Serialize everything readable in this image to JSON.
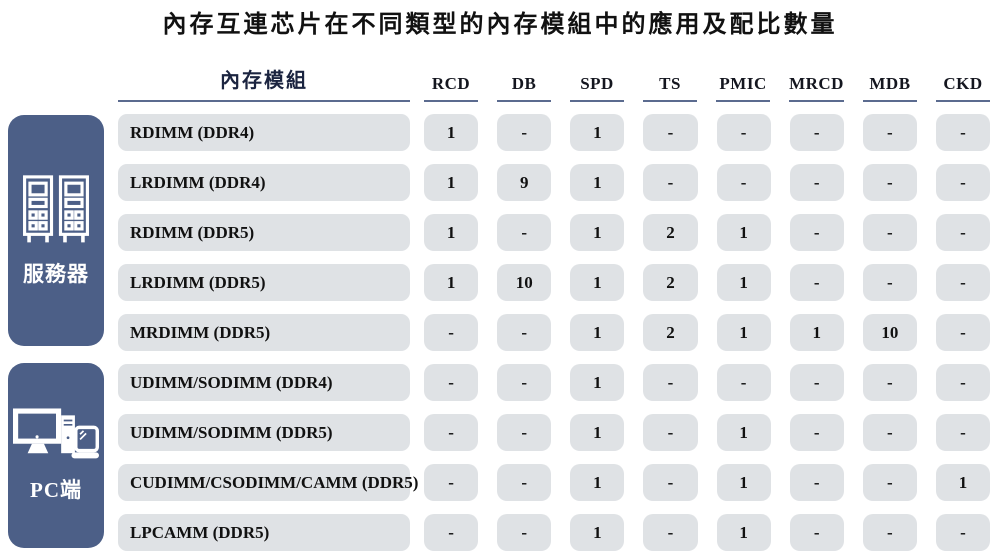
{
  "title": "內存互連芯片在不同類型的內存模組中的應用及配比數量",
  "colors": {
    "sidebar_blue": "#4c5f87",
    "pill_gray": "#dfe2e5",
    "header_underline": "#5b6b8f",
    "value_text": "#111111",
    "module_header_text": "#1b2440",
    "icon_white": "#ffffff"
  },
  "chart_data": {
    "type": "table",
    "title": "內存互連芯片在不同類型的內存模組中的應用及配比數量",
    "module_column_header": "內存模組",
    "chip_columns": [
      "RCD",
      "DB",
      "SPD",
      "TS",
      "PMIC",
      "MRCD",
      "MDB",
      "CKD"
    ],
    "empty_marker": "-",
    "groups": [
      {
        "label": "服務器",
        "icon": "server-rack-icon",
        "rows": [
          {
            "label": "RDIMM (DDR4)",
            "values": [
              "1",
              "-",
              "1",
              "-",
              "-",
              "-",
              "-",
              "-"
            ]
          },
          {
            "label": "LRDIMM (DDR4)",
            "values": [
              "1",
              "9",
              "1",
              "-",
              "-",
              "-",
              "-",
              "-"
            ]
          },
          {
            "label": "RDIMM (DDR5)",
            "values": [
              "1",
              "-",
              "1",
              "2",
              "1",
              "-",
              "-",
              "-"
            ]
          },
          {
            "label": "LRDIMM (DDR5)",
            "values": [
              "1",
              "10",
              "1",
              "2",
              "1",
              "-",
              "-",
              "-"
            ]
          },
          {
            "label": "MRDIMM (DDR5)",
            "values": [
              "-",
              "-",
              "1",
              "2",
              "1",
              "1",
              "10",
              "-"
            ]
          }
        ]
      },
      {
        "label": "PC端",
        "icon": "desktop-laptop-icon",
        "rows": [
          {
            "label": "UDIMM/SODIMM (DDR4)",
            "values": [
              "-",
              "-",
              "1",
              "-",
              "-",
              "-",
              "-",
              "-"
            ]
          },
          {
            "label": "UDIMM/SODIMM (DDR5)",
            "values": [
              "-",
              "-",
              "1",
              "-",
              "1",
              "-",
              "-",
              "-"
            ]
          },
          {
            "label": "CUDIMM/CSODIMM/CAMM (DDR5)",
            "values": [
              "-",
              "-",
              "1",
              "-",
              "1",
              "-",
              "-",
              "1"
            ]
          },
          {
            "label": "LPCAMM (DDR5)",
            "values": [
              "-",
              "-",
              "1",
              "-",
              "1",
              "-",
              "-",
              "-"
            ]
          }
        ]
      }
    ]
  }
}
